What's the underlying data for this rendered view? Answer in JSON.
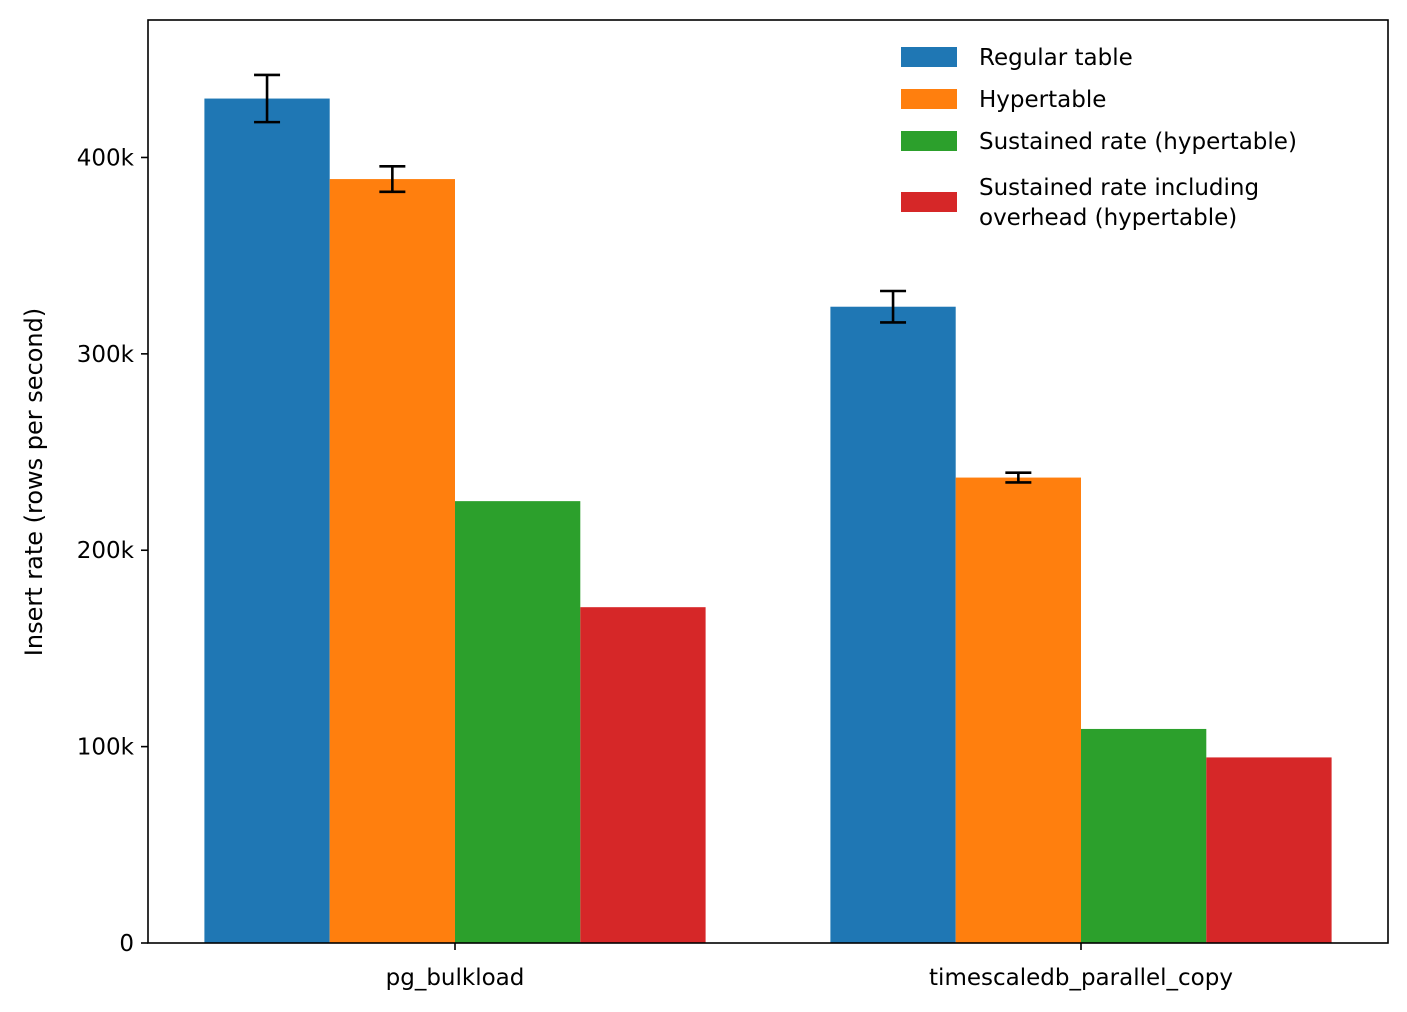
{
  "chart_data": {
    "type": "bar",
    "title": "",
    "xlabel": "",
    "ylabel": "Insert rate (rows per second)",
    "ylim": [
      0,
      470000
    ],
    "yticks": [
      {
        "value": 0,
        "label": "0"
      },
      {
        "value": 100000,
        "label": "100k"
      },
      {
        "value": 200000,
        "label": "200k"
      },
      {
        "value": 300000,
        "label": "300k"
      },
      {
        "value": 400000,
        "label": "400k"
      }
    ],
    "categories": [
      "pg_bulkload",
      "timescaledb_parallel_copy"
    ],
    "legend_position": "top-right",
    "grid": false,
    "series": [
      {
        "name": "Regular table",
        "color": "#1f77b4",
        "values": [
          430000,
          324000
        ],
        "errors": [
          12000,
          8000
        ]
      },
      {
        "name": "Hypertable",
        "color": "#ff7f0e",
        "values": [
          389000,
          237000
        ],
        "errors": [
          6500,
          2500
        ]
      },
      {
        "name": "Sustained rate (hypertable)",
        "color": "#2ca02c",
        "values": [
          225000,
          109000
        ],
        "errors": null
      },
      {
        "name": "Sustained rate including\noverhead (hypertable)",
        "color": "#d62728",
        "values": [
          171000,
          94500
        ],
        "errors": null
      }
    ]
  }
}
